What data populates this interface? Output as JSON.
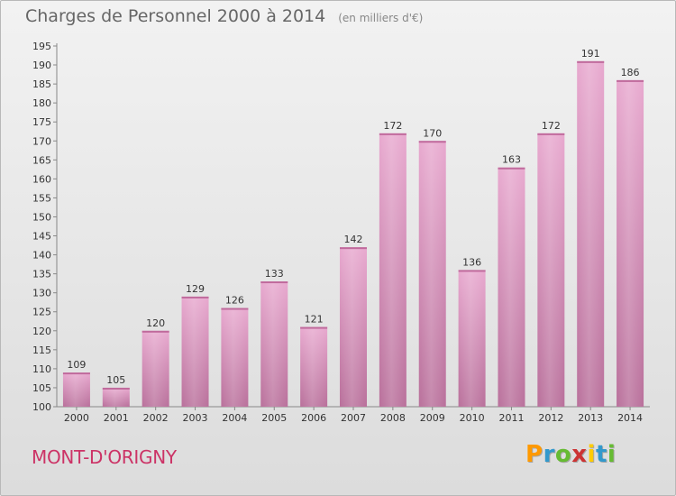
{
  "chart_data": {
    "type": "bar",
    "title": "Charges de Personnel 2000 à 2014",
    "subtitle": "(en milliers d'€)",
    "categories": [
      "2000",
      "2001",
      "2002",
      "2003",
      "2004",
      "2005",
      "2006",
      "2007",
      "2008",
      "2009",
      "2010",
      "2011",
      "2012",
      "2013",
      "2014"
    ],
    "values": [
      109,
      105,
      120,
      129,
      126,
      133,
      121,
      142,
      172,
      170,
      136,
      163,
      172,
      191,
      186
    ],
    "ylim": [
      100,
      195
    ],
    "yticks": [
      100,
      105,
      110,
      115,
      120,
      125,
      130,
      135,
      140,
      145,
      150,
      155,
      160,
      165,
      170,
      175,
      180,
      185,
      190,
      195
    ],
    "grid": false,
    "bar_color": "#cc6699"
  },
  "footer": {
    "commune": "MONT-D'ORIGNY",
    "logo_letters": [
      "P",
      "r",
      "o",
      "x",
      "i",
      "t",
      "i"
    ],
    "logo_colors": [
      "#ff9900",
      "#3399cc",
      "#66bb33",
      "#cc3333",
      "#ffcc00",
      "#3399cc",
      "#66bb33"
    ]
  }
}
